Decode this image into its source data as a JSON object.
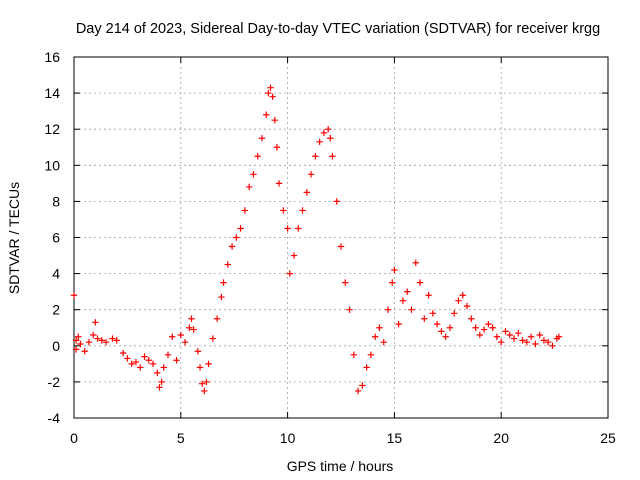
{
  "chart_data": {
    "type": "scatter",
    "title": "Day 214 of 2023, Sidereal Day-to-day VTEC variation (SDTVAR) for receiver krgg",
    "xlabel": "GPS time / hours",
    "ylabel": "SDTVAR / TECUs",
    "xlim": [
      0,
      25
    ],
    "ylim": [
      -4,
      16
    ],
    "xticks": [
      0,
      5,
      10,
      15,
      20,
      25
    ],
    "yticks": [
      -4,
      -2,
      0,
      2,
      4,
      6,
      8,
      10,
      12,
      14,
      16
    ],
    "grid": true,
    "marker": "+",
    "series": [
      {
        "name": "SDTVAR",
        "color": "#ff0000",
        "x": [
          0.0,
          0.1,
          0.1,
          0.2,
          0.3,
          0.5,
          0.7,
          0.9,
          1.0,
          1.1,
          1.3,
          1.5,
          1.8,
          2.0,
          2.3,
          2.5,
          2.7,
          2.9,
          3.1,
          3.3,
          3.5,
          3.7,
          3.9,
          4.0,
          4.1,
          4.2,
          4.4,
          4.6,
          4.8,
          5.0,
          5.2,
          5.4,
          5.5,
          5.6,
          5.8,
          5.9,
          6.0,
          6.1,
          6.2,
          6.3,
          6.5,
          6.7,
          6.9,
          7.0,
          7.2,
          7.4,
          7.6,
          7.8,
          8.0,
          8.2,
          8.4,
          8.6,
          8.8,
          9.0,
          9.1,
          9.2,
          9.3,
          9.4,
          9.5,
          9.6,
          9.8,
          10.0,
          10.1,
          10.3,
          10.5,
          10.7,
          10.9,
          11.1,
          11.3,
          11.5,
          11.7,
          11.9,
          12.0,
          12.1,
          12.3,
          12.5,
          12.7,
          12.9,
          13.1,
          13.3,
          13.5,
          13.7,
          13.9,
          14.1,
          14.3,
          14.5,
          14.7,
          14.9,
          15.0,
          15.2,
          15.4,
          15.6,
          15.8,
          16.0,
          16.2,
          16.4,
          16.6,
          16.8,
          17.0,
          17.2,
          17.4,
          17.6,
          17.8,
          18.0,
          18.2,
          18.4,
          18.6,
          18.8,
          19.0,
          19.2,
          19.4,
          19.6,
          19.8,
          20.0,
          20.2,
          20.4,
          20.6,
          20.8,
          21.0,
          21.2,
          21.4,
          21.6,
          21.8,
          22.0,
          22.2,
          22.4,
          22.6,
          22.7
        ],
        "y": [
          2.8,
          0.3,
          -0.2,
          0.5,
          0.1,
          -0.3,
          0.2,
          0.6,
          1.3,
          0.4,
          0.3,
          0.2,
          0.4,
          0.3,
          -0.4,
          -0.7,
          -1.0,
          -0.9,
          -1.2,
          -0.6,
          -0.8,
          -1.0,
          -1.5,
          -2.3,
          -2.0,
          -1.2,
          -0.5,
          0.5,
          -0.8,
          0.6,
          0.2,
          1.0,
          1.5,
          0.9,
          -0.3,
          -1.2,
          -2.1,
          -2.5,
          -2.0,
          -1.0,
          0.4,
          1.5,
          2.7,
          3.5,
          4.5,
          5.5,
          6.0,
          6.5,
          7.5,
          8.8,
          9.5,
          10.5,
          11.5,
          12.8,
          14.0,
          14.3,
          13.8,
          12.5,
          11.0,
          9.0,
          7.5,
          6.5,
          4.0,
          5.0,
          6.5,
          7.5,
          8.5,
          9.5,
          10.5,
          11.3,
          11.8,
          12.0,
          11.5,
          10.5,
          8.0,
          5.5,
          3.5,
          2.0,
          -0.5,
          -2.5,
          -2.2,
          -1.2,
          -0.5,
          0.5,
          1.0,
          0.2,
          2.0,
          3.5,
          4.2,
          1.2,
          2.5,
          3.0,
          2.0,
          4.6,
          3.5,
          1.5,
          2.8,
          1.8,
          1.2,
          0.8,
          0.5,
          1.0,
          1.8,
          2.5,
          2.8,
          2.2,
          1.5,
          1.0,
          0.6,
          0.9,
          1.2,
          1.0,
          0.5,
          0.2,
          0.8,
          0.6,
          0.4,
          0.7,
          0.3,
          0.2,
          0.5,
          0.1,
          0.6,
          0.3,
          0.2,
          0.0,
          0.4,
          0.5
        ]
      }
    ]
  }
}
